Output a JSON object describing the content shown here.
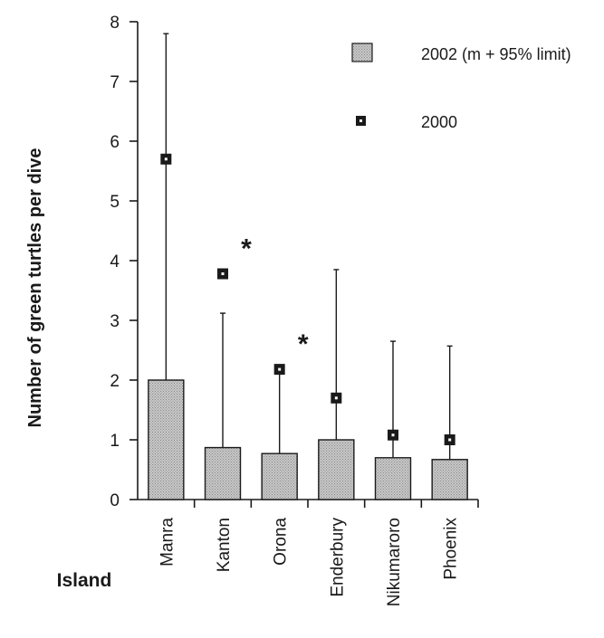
{
  "chart_data": {
    "type": "bar",
    "ylabel": "Number of green turtles per dive",
    "xlabel": "Island",
    "ylim": [
      0,
      8
    ],
    "yticks": [
      "0",
      "1",
      "2",
      "3",
      "4",
      "5",
      "6",
      "7",
      "8"
    ],
    "grid": false,
    "legend_placement": "top-right",
    "categories": [
      "Manra",
      "Kanton",
      "Orona",
      "Enderbury",
      "Nikumaroro",
      "Phoenix"
    ],
    "series": [
      {
        "name": "2002 (m + 95% limit)",
        "kind": "bar",
        "values": [
          2.0,
          0.87,
          0.77,
          1.0,
          0.7,
          0.67
        ],
        "upper_limit": [
          7.8,
          3.12,
          2.2,
          3.85,
          2.65,
          2.57
        ]
      },
      {
        "name": "2000",
        "kind": "point",
        "values": [
          5.7,
          3.78,
          2.18,
          1.7,
          1.08,
          1.0
        ]
      }
    ],
    "annotations": [
      {
        "category": "Kanton",
        "text": "*"
      },
      {
        "category": "Orona",
        "text": "*"
      }
    ],
    "colors": {
      "bar_fill": "#bdbdbd",
      "marker": "#1a1a1a",
      "axis": "#1a1a1a"
    }
  }
}
